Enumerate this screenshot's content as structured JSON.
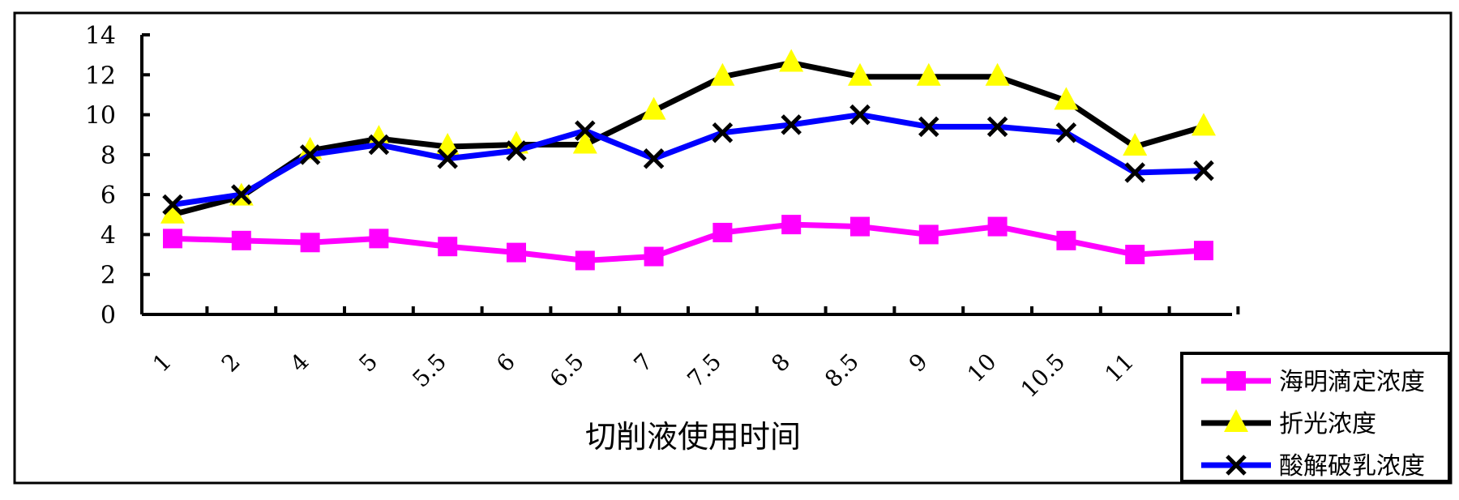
{
  "chart_data": {
    "type": "line",
    "title": "",
    "xlabel": "切削液使用时间",
    "ylabel": "",
    "categories": [
      "1",
      "2",
      "4",
      "5",
      "5.5",
      "6",
      "6.5",
      "7",
      "7.5",
      "8",
      "8.5",
      "9",
      "10",
      "10.5",
      "11",
      ""
    ],
    "ylim": [
      0,
      14
    ],
    "yticks": [
      0,
      2,
      4,
      6,
      8,
      10,
      12,
      14
    ],
    "grid": false,
    "legend_position": "bottom-right",
    "series": [
      {
        "name": "海明滴定浓度",
        "color": "#ff00ff",
        "marker": "square",
        "values": [
          3.8,
          3.7,
          3.6,
          3.8,
          3.4,
          3.1,
          2.7,
          2.9,
          4.1,
          4.5,
          4.4,
          4.0,
          4.4,
          3.7,
          3.0,
          3.2
        ]
      },
      {
        "name": "折光浓度",
        "color": "#000000",
        "marker_color": "#ffff00",
        "marker": "triangle",
        "values": [
          5.0,
          5.9,
          8.2,
          8.8,
          8.4,
          8.5,
          8.5,
          10.2,
          11.9,
          12.6,
          11.9,
          11.9,
          11.9,
          10.7,
          8.4,
          9.4
        ]
      },
      {
        "name": "酸解破乳浓度",
        "color": "#0000ff",
        "marker_color": "#000000",
        "marker": "x",
        "values": [
          5.5,
          6.0,
          8.0,
          8.5,
          7.8,
          8.2,
          9.2,
          7.8,
          9.1,
          9.5,
          10.0,
          9.4,
          9.4,
          9.1,
          7.1,
          7.2
        ]
      }
    ]
  }
}
